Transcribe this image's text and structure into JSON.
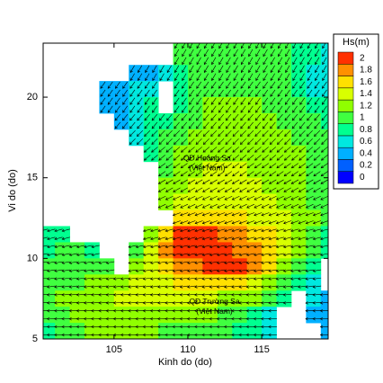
{
  "chart_data": {
    "type": "field",
    "x_label": "Kinh do (do)",
    "y_label": "Vi do (do)",
    "xlim": [
      100.2,
      119.5
    ],
    "ylim": [
      5,
      23.35
    ],
    "xticks": [
      105,
      110,
      115
    ],
    "yticks": [
      5,
      10,
      15,
      20
    ],
    "lon": [
      100.5,
      101.5,
      102.5,
      103.5,
      104.5,
      105.5,
      106.5,
      107.5,
      108.5,
      109.5,
      110.5,
      111.5,
      112.5,
      113.5,
      114.5,
      115.5,
      116.5,
      117.5,
      118.5,
      119.5
    ],
    "lat": [
      23.5,
      22.5,
      21.5,
      20.5,
      19.5,
      18.5,
      17.5,
      16.5,
      15.5,
      14.5,
      13.5,
      12.5,
      11.5,
      10.5,
      9.5,
      8.5,
      7.5,
      6.5,
      5.5
    ],
    "values": [
      [
        null,
        null,
        null,
        null,
        null,
        null,
        null,
        null,
        null,
        1.0,
        1.1,
        1.1,
        1.1,
        1.0,
        1.0,
        1.0,
        1.0,
        0.9,
        0.8,
        0.7
      ],
      [
        null,
        null,
        null,
        null,
        null,
        null,
        null,
        null,
        null,
        1.0,
        1.1,
        1.1,
        1.1,
        1.1,
        1.0,
        1.0,
        1.0,
        0.9,
        0.8,
        0.7
      ],
      [
        null,
        null,
        null,
        null,
        null,
        null,
        0.5,
        0.5,
        0.7,
        0.9,
        1.0,
        1.1,
        1.1,
        1.1,
        1.0,
        1.0,
        1.0,
        0.9,
        0.7,
        0.6
      ],
      [
        null,
        null,
        null,
        null,
        0.4,
        0.5,
        0.6,
        0.7,
        null,
        0.9,
        1.0,
        1.1,
        1.1,
        1.1,
        1.1,
        1.1,
        1.0,
        0.9,
        0.7,
        0.6
      ],
      [
        null,
        null,
        null,
        null,
        0.4,
        0.5,
        0.6,
        0.8,
        null,
        0.9,
        1.1,
        1.2,
        1.2,
        1.2,
        1.2,
        1.1,
        1.1,
        1.0,
        0.9,
        0.8
      ],
      [
        null,
        null,
        null,
        null,
        null,
        0.5,
        0.7,
        0.8,
        0.9,
        1.0,
        1.1,
        1.2,
        1.3,
        1.3,
        1.2,
        1.2,
        1.1,
        1.1,
        1.0,
        0.9
      ],
      [
        null,
        null,
        null,
        null,
        null,
        null,
        0.7,
        0.9,
        1.0,
        1.1,
        1.2,
        1.3,
        1.3,
        1.3,
        1.3,
        1.2,
        1.2,
        1.1,
        1.0,
        1.0
      ],
      [
        null,
        null,
        null,
        null,
        null,
        null,
        null,
        0.9,
        1.1,
        1.2,
        1.3,
        1.3,
        1.3,
        1.3,
        1.3,
        1.3,
        1.2,
        1.2,
        1.1,
        1.0
      ],
      [
        null,
        null,
        null,
        null,
        null,
        null,
        null,
        null,
        1.1,
        1.2,
        1.3,
        1.4,
        1.4,
        1.4,
        1.3,
        1.3,
        1.3,
        1.2,
        1.1,
        1.0
      ],
      [
        null,
        null,
        null,
        null,
        null,
        null,
        null,
        null,
        1.2,
        1.3,
        1.4,
        1.4,
        1.5,
        1.4,
        1.4,
        1.3,
        1.3,
        1.2,
        1.1,
        1.0
      ],
      [
        null,
        null,
        null,
        null,
        null,
        null,
        null,
        null,
        1.3,
        1.5,
        1.5,
        1.5,
        1.5,
        1.5,
        1.4,
        1.4,
        1.3,
        1.2,
        1.1,
        1.0
      ],
      [
        null,
        null,
        null,
        null,
        null,
        null,
        null,
        null,
        null,
        1.6,
        1.6,
        1.7,
        1.7,
        1.6,
        1.5,
        1.4,
        1.4,
        1.3,
        1.2,
        1.0
      ],
      [
        0.9,
        0.9,
        null,
        null,
        null,
        null,
        null,
        1.3,
        1.7,
        2.0,
        2.1,
        2.1,
        1.9,
        1.8,
        1.7,
        1.6,
        1.4,
        1.3,
        1.1,
        0.9
      ],
      [
        0.9,
        1.0,
        1.0,
        0.9,
        null,
        null,
        1.1,
        1.5,
        1.8,
        2.0,
        2.1,
        2.0,
        2.0,
        1.9,
        1.9,
        1.7,
        1.5,
        1.3,
        1.0,
        0.8
      ],
      [
        1.0,
        1.0,
        1.1,
        1.1,
        1.0,
        null,
        1.3,
        1.5,
        1.7,
        1.8,
        1.9,
        2.0,
        2.0,
        2.0,
        1.8,
        1.6,
        1.3,
        1.1,
        0.8,
        null
      ],
      [
        1.0,
        1.1,
        1.1,
        1.2,
        1.2,
        1.3,
        1.4,
        1.5,
        1.5,
        1.6,
        1.7,
        1.7,
        1.7,
        1.6,
        1.5,
        1.3,
        1.1,
        0.9,
        0.7,
        null
      ],
      [
        1.1,
        1.2,
        1.2,
        1.3,
        1.3,
        1.4,
        1.4,
        1.4,
        1.4,
        1.4,
        1.4,
        1.4,
        1.3,
        1.3,
        1.2,
        1.0,
        0.8,
        null,
        0.6,
        0.4
      ],
      [
        1.0,
        1.1,
        1.2,
        1.3,
        1.3,
        1.3,
        1.3,
        1.3,
        1.2,
        1.2,
        1.2,
        1.2,
        1.1,
        1.0,
        0.9,
        0.7,
        null,
        null,
        0.5,
        0.4
      ],
      [
        0.9,
        1.0,
        1.1,
        1.2,
        1.2,
        1.2,
        1.2,
        1.2,
        1.1,
        1.1,
        1.1,
        1.0,
        1.0,
        0.9,
        0.8,
        0.6,
        null,
        null,
        null,
        0.4
      ]
    ],
    "arrow_direction": [
      210,
      210,
      210,
      215,
      215,
      220,
      225,
      230,
      235,
      240,
      245,
      250,
      255,
      258,
      260,
      262,
      265,
      268,
      270
    ],
    "arrow_color": "#000000",
    "colorbar": {
      "title": "Hs(m)",
      "ticks": [
        0,
        0.2,
        0.4,
        0.6,
        0.8,
        1,
        1.2,
        1.4,
        1.6,
        1.8,
        2
      ],
      "colors": [
        "#0000ff",
        "#0060ff",
        "#00b0ff",
        "#00e8e0",
        "#00ff90",
        "#40ff40",
        "#90ff00",
        "#d8ff00",
        "#ffe000",
        "#ff9000",
        "#ff3000"
      ]
    },
    "annotations": [
      {
        "lines": [
          "QĐ Hoàng Sa",
          "(Việt Nam)"
        ],
        "lon": 111.3,
        "lat": 16.2
      },
      {
        "lines": [
          "QĐ Trường Sa",
          "(Việt Nam)"
        ],
        "lon": 111.8,
        "lat": 7.3
      }
    ]
  }
}
